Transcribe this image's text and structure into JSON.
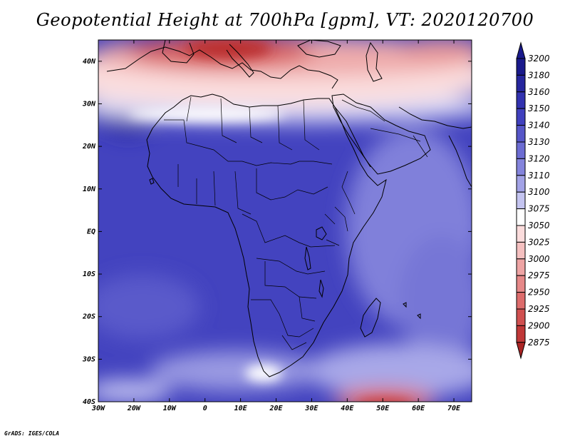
{
  "title": "Geopotential Height at 700hPa [gpm], VT: 2020120700",
  "credit": "GrADS: IGES/COLA",
  "lat_ticks": [
    {
      "label": "40N",
      "value": 40
    },
    {
      "label": "30N",
      "value": 30
    },
    {
      "label": "20N",
      "value": 20
    },
    {
      "label": "10N",
      "value": 10
    },
    {
      "label": "EQ",
      "value": 0
    },
    {
      "label": "10S",
      "value": -10
    },
    {
      "label": "20S",
      "value": -20
    },
    {
      "label": "30S",
      "value": -30
    },
    {
      "label": "40S",
      "value": -40
    }
  ],
  "lon_ticks": [
    {
      "label": "30W",
      "value": -30
    },
    {
      "label": "20W",
      "value": -20
    },
    {
      "label": "10W",
      "value": -10
    },
    {
      "label": "0",
      "value": 0
    },
    {
      "label": "10E",
      "value": 10
    },
    {
      "label": "20E",
      "value": 20
    },
    {
      "label": "30E",
      "value": 30
    },
    {
      "label": "40E",
      "value": 40
    },
    {
      "label": "50E",
      "value": 50
    },
    {
      "label": "60E",
      "value": 60
    },
    {
      "label": "70E",
      "value": 70
    }
  ],
  "colorbar": [
    {
      "label": "3200",
      "color": "#1a1a8c"
    },
    {
      "label": "3180",
      "color": "#26269e"
    },
    {
      "label": "3160",
      "color": "#3232b0"
    },
    {
      "label": "3150",
      "color": "#4040be"
    },
    {
      "label": "3140",
      "color": "#5656c8"
    },
    {
      "label": "3130",
      "color": "#6c6cd2"
    },
    {
      "label": "3120",
      "color": "#8484dc"
    },
    {
      "label": "3110",
      "color": "#a2a2e6"
    },
    {
      "label": "3100",
      "color": "#c4c4f0"
    },
    {
      "label": "3075",
      "color": "#ffffff"
    },
    {
      "label": "3050",
      "color": "#fbdcdc"
    },
    {
      "label": "3025",
      "color": "#f5c0c0"
    },
    {
      "label": "3000",
      "color": "#eea4a4"
    },
    {
      "label": "2975",
      "color": "#e68888"
    },
    {
      "label": "2950",
      "color": "#dd6c6c"
    },
    {
      "label": "2925",
      "color": "#d05050"
    },
    {
      "label": "2900",
      "color": "#c03838"
    },
    {
      "label": "2875",
      "color": "#aa2424"
    }
  ]
}
